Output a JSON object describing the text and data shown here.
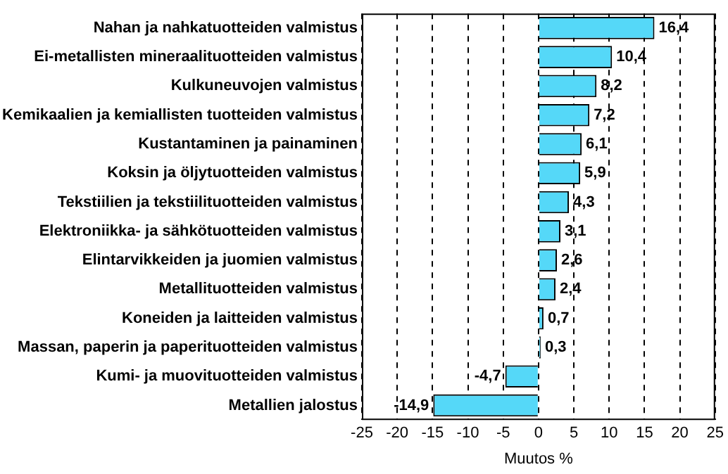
{
  "chart_data": {
    "type": "bar",
    "orientation": "horizontal",
    "xlabel": "Muutos %",
    "categories": [
      "Nahan ja nahkatuotteiden valmistus",
      "Ei-metallisten mineraalituotteiden valmistus",
      "Kulkuneuvojen valmistus",
      "Kemikaalien ja kemiallisten tuotteiden valmistus",
      "Kustantaminen ja painaminen",
      "Koksin ja öljytuotteiden valmistus",
      "Tekstiilien ja tekstiilituotteiden valmistus",
      "Elektroniikka- ja sähkötuotteiden valmistus",
      "Elintarvikkeiden ja juomien valmistus",
      "Metallituotteiden valmistus",
      "Koneiden ja laitteiden valmistus",
      "Massan, paperin ja paperituotteiden valmistus",
      "Kumi- ja muovituotteiden valmistus",
      "Metallien jalostus"
    ],
    "values": [
      16.4,
      10.4,
      8.2,
      7.2,
      6.1,
      5.9,
      4.3,
      3.1,
      2.6,
      2.4,
      0.7,
      0.3,
      -4.7,
      -14.9
    ],
    "value_labels": [
      "16,4",
      "10,4",
      "8,2",
      "7,2",
      "6,1",
      "5,9",
      "4,3",
      "3,1",
      "2,6",
      "2,4",
      "0,7",
      "0,3",
      "-4,7",
      "-14,9"
    ],
    "color": "#55d8f8",
    "xlim": [
      -25,
      25
    ],
    "xticks": [
      -25,
      -20,
      -15,
      -10,
      -5,
      0,
      5,
      10,
      15,
      20,
      25
    ],
    "grid": "x",
    "legend": false
  }
}
